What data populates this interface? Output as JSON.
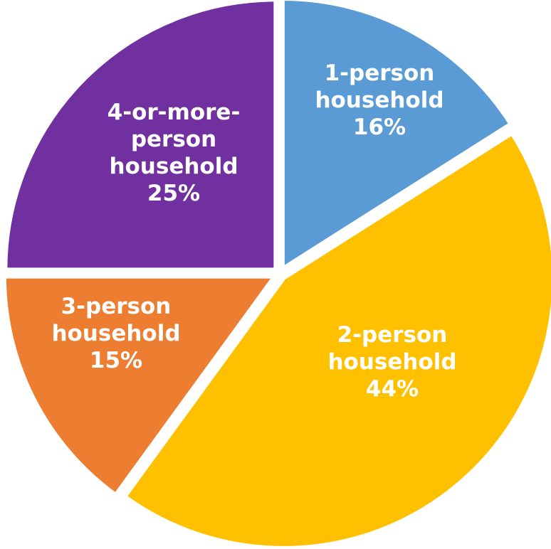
{
  "chart_data": {
    "type": "pie",
    "title": "",
    "legend": "none",
    "slices": [
      {
        "label_lines": [
          "1-person",
          "household"
        ],
        "pct_label": "16%",
        "value": 16,
        "color": "#5b9bd5"
      },
      {
        "label_lines": [
          "2-person",
          "household"
        ],
        "pct_label": "44%",
        "value": 44,
        "color": "#ffc000"
      },
      {
        "label_lines": [
          "3-person",
          "household"
        ],
        "pct_label": "15%",
        "value": 15,
        "color": "#ed7d31"
      },
      {
        "label_lines": [
          "4-or-more-",
          "person",
          "household"
        ],
        "pct_label": "25%",
        "value": 25,
        "color": "#7030a0"
      }
    ]
  }
}
